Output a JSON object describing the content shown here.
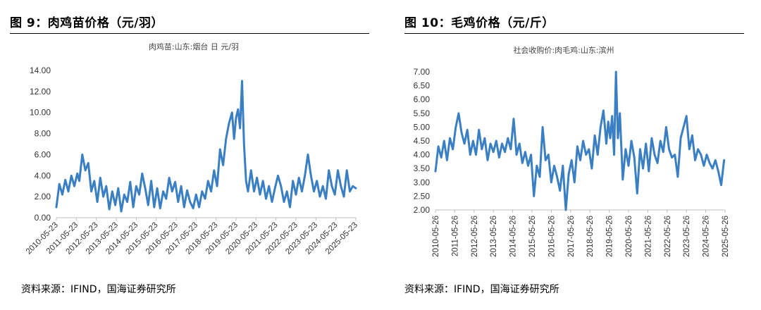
{
  "left": {
    "fig_title": "图 9：肉鸡苗价格（元/羽）",
    "source": "资料来源：IFIND，国海证券研究所"
  },
  "right": {
    "fig_title": "图 10：毛鸡价格（元/斤）",
    "source": "资料来源：IFIND，国海证券研究所"
  },
  "colors": {
    "line": "#3a7fc4"
  },
  "chart_data": [
    {
      "type": "line",
      "title": "肉鸡苗:山东:烟台 日 元/羽",
      "xlabel": "",
      "ylabel": "",
      "ylim": [
        0,
        14
      ],
      "yticks": [
        "0.00",
        "2.00",
        "4.00",
        "6.00",
        "8.00",
        "10.00",
        "12.00",
        "14.00"
      ],
      "xticks": [
        "2010-05-23",
        "2011-05-23",
        "2012-05-23",
        "2013-05-23",
        "2014-05-23",
        "2015-05-23",
        "2016-05-23",
        "2017-05-23",
        "2018-05-23",
        "2019-05-23",
        "2020-05-23",
        "2021-05-23",
        "2022-05-23",
        "2023-05-23",
        "2024-05-23",
        "2025-05-23"
      ],
      "series": [
        {
          "x": [
            2010.4,
            2010.55,
            2010.7,
            2010.85,
            2011.0,
            2011.15,
            2011.3,
            2011.45,
            2011.55,
            2011.7,
            2011.85,
            2012.0,
            2012.15,
            2012.3,
            2012.45,
            2012.6,
            2012.75,
            2012.9,
            2013.05,
            2013.2,
            2013.35,
            2013.5,
            2013.65,
            2013.8,
            2013.95,
            2014.1,
            2014.25,
            2014.4,
            2014.55,
            2014.7,
            2014.85,
            2015.0,
            2015.15,
            2015.3,
            2015.45,
            2015.6,
            2015.75,
            2015.9,
            2016.05,
            2016.2,
            2016.35,
            2016.5,
            2016.65,
            2016.8,
            2016.95,
            2017.1,
            2017.25,
            2017.4,
            2017.55,
            2017.7,
            2017.85,
            2018.0,
            2018.15,
            2018.3,
            2018.45,
            2018.6,
            2018.75,
            2018.9,
            2019.05,
            2019.2,
            2019.3,
            2019.4,
            2019.5,
            2019.6,
            2019.7,
            2019.8,
            2019.9,
            2020.0,
            2020.15,
            2020.3,
            2020.45,
            2020.6,
            2020.75,
            2020.9,
            2021.05,
            2021.2,
            2021.35,
            2021.5,
            2021.65,
            2021.8,
            2021.95,
            2022.1,
            2022.25,
            2022.4,
            2022.55,
            2022.7,
            2022.85,
            2023.0,
            2023.15,
            2023.3,
            2023.45,
            2023.6,
            2023.75,
            2023.9,
            2024.05,
            2024.2,
            2024.35,
            2024.5,
            2024.65,
            2024.8,
            2024.95,
            2025.1,
            2025.25,
            2025.4
          ],
          "values": [
            1.0,
            3.2,
            2.2,
            3.6,
            2.5,
            4.0,
            3.0,
            4.2,
            3.5,
            6.0,
            4.5,
            5.2,
            2.5,
            3.5,
            1.5,
            3.8,
            2.0,
            3.0,
            0.8,
            2.5,
            1.2,
            2.8,
            0.6,
            2.2,
            1.5,
            3.4,
            1.0,
            3.0,
            2.2,
            4.2,
            2.8,
            1.2,
            3.5,
            1.0,
            2.8,
            0.9,
            2.5,
            1.8,
            3.8,
            2.5,
            3.4,
            1.5,
            3.0,
            1.0,
            2.6,
            1.5,
            0.9,
            2.2,
            1.0,
            2.5,
            1.8,
            3.5,
            2.5,
            4.5,
            3.0,
            6.5,
            5.0,
            7.5,
            9.0,
            10.0,
            7.5,
            9.5,
            10.3,
            8.5,
            13.0,
            7.0,
            3.5,
            2.5,
            4.5,
            2.5,
            3.8,
            2.2,
            3.5,
            1.8,
            3.0,
            1.5,
            2.8,
            4.0,
            3.0,
            1.5,
            2.5,
            1.0,
            3.5,
            2.2,
            3.8,
            2.5,
            4.0,
            6.0,
            4.0,
            2.5,
            3.5,
            2.0,
            3.0,
            1.8,
            4.5,
            3.0,
            2.2,
            4.5,
            3.0,
            2.0,
            4.5,
            2.5,
            3.0,
            2.8
          ]
        }
      ]
    },
    {
      "type": "line",
      "title": "社会收购价:肉毛鸡:山东:滨州",
      "xlabel": "",
      "ylabel": "",
      "ylim": [
        2,
        7
      ],
      "yticks": [
        "2.00",
        "2.50",
        "3.00",
        "3.50",
        "4.00",
        "4.50",
        "5.00",
        "5.50",
        "6.00",
        "6.50",
        "7.00"
      ],
      "xticks": [
        "2010-05-26",
        "2011-05-26",
        "2012-05-26",
        "2013-05-26",
        "2014-05-26",
        "2015-05-26",
        "2016-05-26",
        "2017-05-26",
        "2018-05-26",
        "2019-05-26",
        "2020-05-26",
        "2021-05-26",
        "2022-05-26",
        "2023-05-26",
        "2024-05-26",
        "2025-05-26"
      ],
      "series": [
        {
          "x": [
            2010.4,
            2010.55,
            2010.7,
            2010.85,
            2011.0,
            2011.15,
            2011.3,
            2011.45,
            2011.6,
            2011.75,
            2011.9,
            2012.05,
            2012.2,
            2012.35,
            2012.5,
            2012.65,
            2012.8,
            2012.95,
            2013.1,
            2013.25,
            2013.4,
            2013.55,
            2013.7,
            2013.85,
            2014.0,
            2014.15,
            2014.3,
            2014.45,
            2014.6,
            2014.75,
            2014.9,
            2015.05,
            2015.2,
            2015.35,
            2015.5,
            2015.65,
            2015.8,
            2015.95,
            2016.1,
            2016.25,
            2016.4,
            2016.55,
            2016.7,
            2016.85,
            2017.0,
            2017.15,
            2017.3,
            2017.45,
            2017.6,
            2017.75,
            2017.9,
            2018.05,
            2018.2,
            2018.35,
            2018.5,
            2018.65,
            2018.8,
            2018.95,
            2019.1,
            2019.25,
            2019.35,
            2019.45,
            2019.55,
            2019.65,
            2019.75,
            2019.85,
            2019.95,
            2020.1,
            2020.25,
            2020.4,
            2020.55,
            2020.7,
            2020.85,
            2021.0,
            2021.15,
            2021.3,
            2021.45,
            2021.6,
            2021.75,
            2021.9,
            2022.05,
            2022.2,
            2022.35,
            2022.5,
            2022.65,
            2022.8,
            2022.95,
            2023.1,
            2023.25,
            2023.4,
            2023.55,
            2023.7,
            2023.85,
            2024.0,
            2024.15,
            2024.3,
            2024.45,
            2024.6,
            2024.75,
            2024.9,
            2025.05,
            2025.2,
            2025.35
          ],
          "values": [
            3.4,
            4.3,
            3.9,
            4.5,
            3.8,
            4.6,
            4.2,
            5.0,
            5.5,
            4.8,
            4.4,
            4.9,
            4.0,
            4.5,
            4.0,
            4.9,
            4.2,
            4.6,
            3.8,
            4.4,
            4.1,
            4.5,
            3.9,
            4.4,
            4.1,
            4.6,
            4.2,
            5.3,
            4.0,
            4.4,
            3.7,
            4.1,
            3.6,
            4.0,
            2.5,
            3.6,
            3.2,
            5.0,
            3.8,
            4.0,
            3.0,
            3.6,
            3.2,
            2.7,
            3.6,
            2.0,
            3.3,
            3.8,
            3.0,
            4.3,
            3.8,
            4.5,
            4.0,
            4.2,
            3.5,
            4.7,
            4.0,
            5.0,
            5.6,
            4.4,
            5.2,
            4.6,
            5.4,
            4.0,
            7.0,
            4.6,
            5.5,
            3.1,
            4.2,
            3.6,
            4.5,
            3.9,
            2.6,
            4.2,
            3.5,
            4.4,
            3.4,
            4.6,
            4.0,
            3.7,
            4.5,
            4.1,
            5.0,
            4.2,
            3.9,
            4.0,
            3.2,
            4.6,
            5.0,
            5.4,
            4.2,
            4.7,
            3.8,
            4.2,
            4.0,
            3.6,
            4.0,
            3.7,
            3.5,
            3.8,
            3.4,
            2.9,
            3.8
          ]
        }
      ]
    }
  ]
}
